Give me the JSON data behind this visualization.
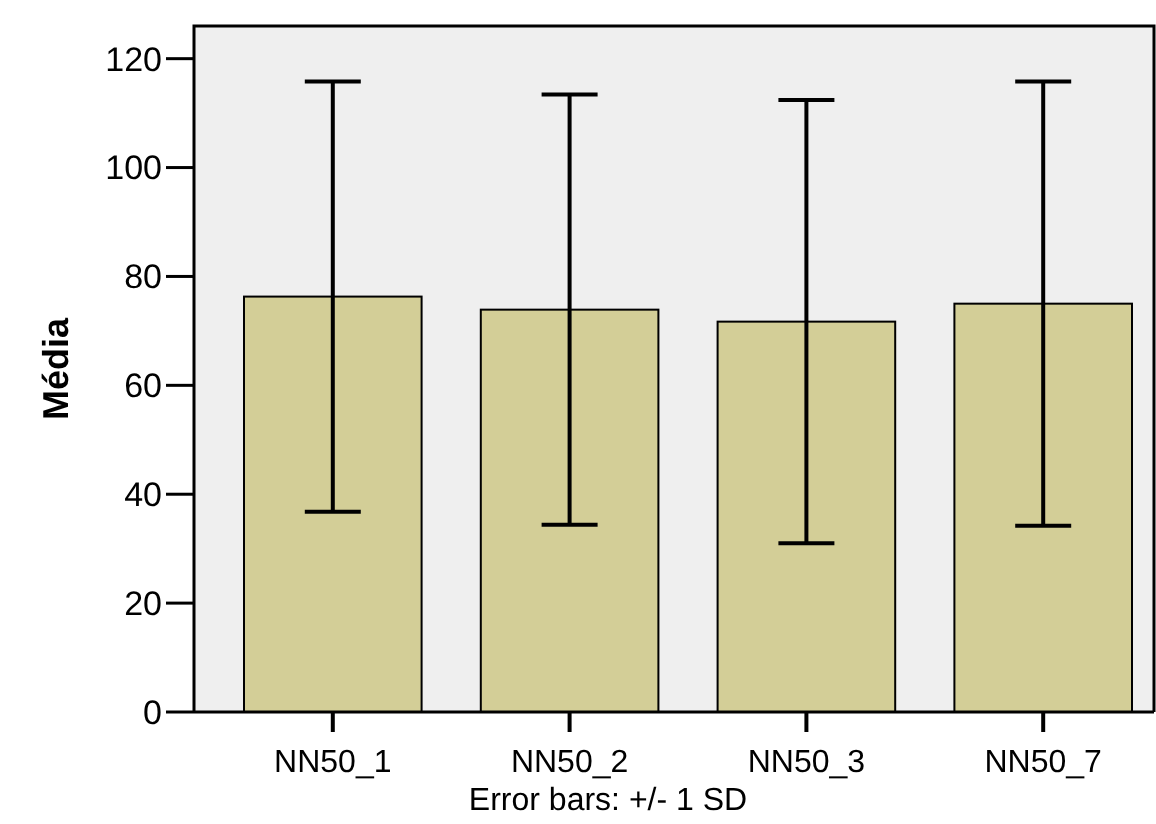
{
  "chart_data": {
    "type": "bar",
    "ylabel": "Média",
    "categories": [
      "NN50_1",
      "NN50_2",
      "NN50_3",
      "NN50_7"
    ],
    "values": [
      76.3,
      73.9,
      71.7,
      75.0
    ],
    "errors": [
      39.5,
      39.5,
      40.7,
      40.8
    ],
    "color": "#d3ce97",
    "ylim": [
      0,
      126
    ],
    "yticks": [
      0,
      20,
      40,
      60,
      80,
      100,
      120
    ],
    "annotations": [
      "Error bars: +/- 1 SD"
    ]
  }
}
